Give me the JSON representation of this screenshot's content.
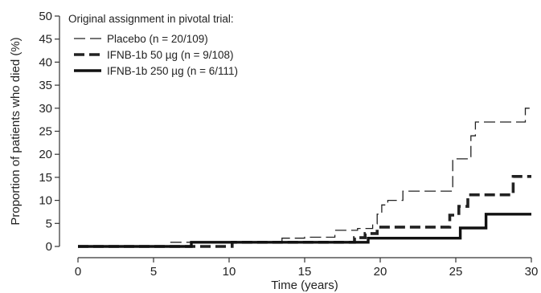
{
  "chart_data": {
    "type": "line",
    "step": true,
    "xlabel": "Time (years)",
    "ylabel": "Proportion of patients who died (%)",
    "xlim": [
      0,
      30
    ],
    "ylim": [
      0,
      50
    ],
    "xticks": [
      0,
      5,
      10,
      15,
      20,
      25,
      30
    ],
    "yticks": [
      0,
      5,
      10,
      15,
      20,
      25,
      30,
      35,
      40,
      45,
      50
    ],
    "grid": false,
    "legend": {
      "placement": "top-left",
      "title": "Original assignment in pivotal trial:"
    },
    "series": [
      {
        "name": "Placebo (n = 20/109)",
        "line_style": "dashed-thin",
        "color": "#222222",
        "x": [
          0,
          6,
          7.5,
          10,
          13.5,
          15,
          17,
          18.5,
          19.5,
          19.8,
          20.1,
          20.5,
          21.5,
          24.2,
          24.8,
          25.5,
          26,
          26.3,
          29.3,
          29.6,
          30
        ],
        "y": [
          0,
          0.9,
          0.9,
          0.9,
          1.8,
          2.0,
          3.5,
          3.9,
          4.9,
          7.0,
          9.0,
          10.0,
          12.0,
          12.0,
          19.0,
          19.0,
          24.0,
          27.0,
          27.0,
          30.0,
          30.0
        ]
      },
      {
        "name": "IFNB-1b 50 µg (n = 9/108)",
        "line_style": "dashed-thick",
        "color": "#222222",
        "x": [
          0,
          10.2,
          17.5,
          18.3,
          19.0,
          19.8,
          24.6,
          25.2,
          25.8,
          28.8,
          30
        ],
        "y": [
          0,
          0.9,
          0.9,
          1.9,
          2.8,
          4.2,
          6.8,
          8.7,
          11.2,
          15.2,
          15.2
        ]
      },
      {
        "name": "IFNB-1b 250 µg (n = 6/111)",
        "line_style": "solid-thick",
        "color": "#111111",
        "x": [
          0,
          7.5,
          19.2,
          25.3,
          27.0,
          30
        ],
        "y": [
          0,
          0.9,
          1.8,
          4.0,
          7.0,
          7.0
        ]
      }
    ]
  }
}
